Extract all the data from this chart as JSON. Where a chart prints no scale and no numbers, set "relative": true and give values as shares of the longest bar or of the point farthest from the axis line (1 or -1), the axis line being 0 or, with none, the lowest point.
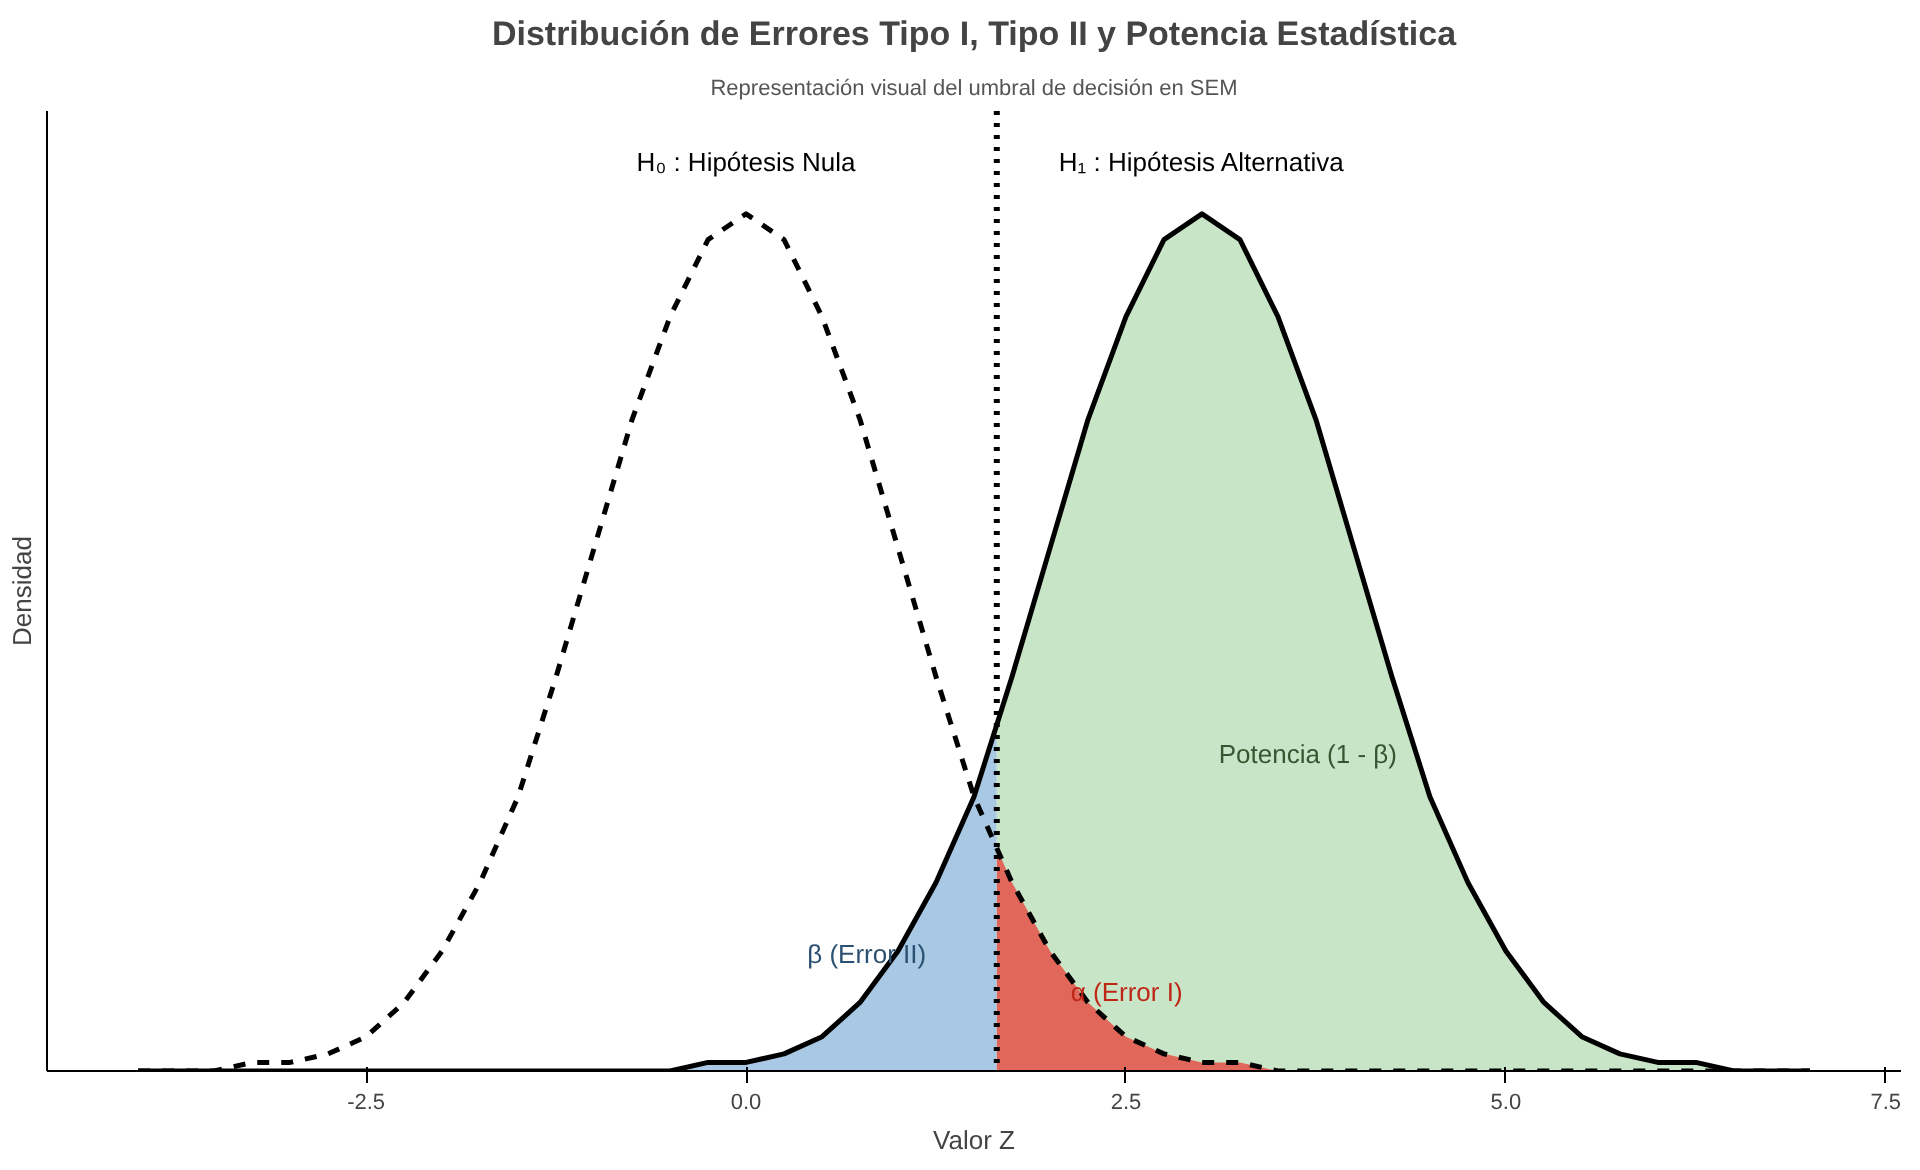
{
  "chart_data": {
    "type": "line",
    "title": "Distribución de Errores Tipo I, Tipo II y Potencia Estadística",
    "subtitle": "Representación visual del umbral de decisión en SEM",
    "xlabel": "Valor Z",
    "ylabel": "Densidad",
    "relative": true,
    "xlim": [
      -4.6,
      7.6
    ],
    "xticks": [
      -2.5,
      {
        "value": 0,
        "label": "0.0"
      },
      2.5,
      {
        "value": 5,
        "label": "5.0"
      },
      7.5
    ],
    "tick_labels": "x",
    "grid": false,
    "legend": false,
    "marker": "none",
    "series": [
      {
        "type": "area",
        "name": "β (Error II)",
        "color": "#a9c8e3",
        "x": [
          -4,
          -3.75,
          -3.5,
          -3.25,
          -3,
          -2.75,
          -2.5,
          -2.25,
          -2,
          -1.75,
          -1.5,
          -1.25,
          -1,
          -0.75,
          -0.5,
          -0.25,
          0,
          0.25,
          0.5,
          0.75,
          1,
          1.25,
          1.5,
          1.65
        ],
        "values": [
          0,
          0,
          0,
          0,
          0,
          0,
          0,
          0,
          0,
          0,
          0,
          0,
          0,
          0,
          0,
          0.01,
          0.01,
          0.02,
          0.04,
          0.08,
          0.14,
          0.22,
          0.32,
          0.4
        ]
      },
      {
        "type": "area",
        "name": "Potencia (1 - β)",
        "color": "#c9e5c7",
        "x": [
          1.65,
          1.75,
          2,
          2.25,
          2.5,
          2.75,
          3,
          3.25,
          3.5,
          3.75,
          4,
          4.25,
          4.5,
          4.75,
          5,
          5.25,
          5.5,
          5.75,
          6,
          6.25,
          6.5,
          6.75,
          7
        ],
        "values": [
          0.4,
          0.46,
          0.61,
          0.76,
          0.88,
          0.97,
          1,
          0.97,
          0.88,
          0.76,
          0.61,
          0.46,
          0.32,
          0.22,
          0.14,
          0.08,
          0.04,
          0.02,
          0.01,
          0.01,
          0,
          0,
          0
        ]
      },
      {
        "type": "area",
        "name": "α (Error I)",
        "color": "#e0675a",
        "x": [
          1.65,
          1.75,
          2,
          2.25,
          2.5,
          2.75,
          3,
          3.25,
          3.5,
          3.75,
          4,
          4.25,
          4.5,
          4.75,
          5,
          5.25,
          5.5,
          5.75,
          6,
          6.25,
          6.5,
          6.75,
          7
        ],
        "values": [
          0.26,
          0.22,
          0.14,
          0.08,
          0.04,
          0.02,
          0.01,
          0.01,
          0,
          0,
          0,
          0,
          0,
          0,
          0,
          0,
          0,
          0,
          0,
          0,
          0,
          0,
          0
        ]
      },
      {
        "name": "H₀ : Hipótesis Nula",
        "color": "#000000",
        "line_style": "dashed",
        "x": [
          -4,
          -3.75,
          -3.5,
          -3.25,
          -3,
          -2.75,
          -2.5,
          -2.25,
          -2,
          -1.75,
          -1.5,
          -1.25,
          -1,
          -0.75,
          -0.5,
          -0.25,
          0,
          0.25,
          0.5,
          0.75,
          1,
          1.25,
          1.5,
          1.75,
          2,
          2.25,
          2.5,
          2.75,
          3,
          3.25,
          3.5,
          3.75,
          4,
          4.25,
          4.5,
          4.75,
          5,
          5.25,
          5.5,
          5.75,
          6,
          6.25,
          6.5,
          6.75,
          7
        ],
        "values": [
          0,
          0,
          0,
          0.01,
          0.01,
          0.02,
          0.04,
          0.08,
          0.14,
          0.22,
          0.32,
          0.46,
          0.61,
          0.76,
          0.88,
          0.97,
          1,
          0.97,
          0.88,
          0.76,
          0.61,
          0.46,
          0.32,
          0.22,
          0.14,
          0.08,
          0.04,
          0.02,
          0.01,
          0.01,
          0,
          0,
          0,
          0,
          0,
          0,
          0,
          0,
          0,
          0,
          0,
          0,
          0,
          0,
          0
        ]
      },
      {
        "name": "H₁ : Hipótesis Alternativa",
        "color": "#000000",
        "line_style": "solid",
        "x": [
          -4,
          -3.75,
          -3.5,
          -3.25,
          -3,
          -2.75,
          -2.5,
          -2.25,
          -2,
          -1.75,
          -1.5,
          -1.25,
          -1,
          -0.75,
          -0.5,
          -0.25,
          0,
          0.25,
          0.5,
          0.75,
          1,
          1.25,
          1.5,
          1.75,
          2,
          2.25,
          2.5,
          2.75,
          3,
          3.25,
          3.5,
          3.75,
          4,
          4.25,
          4.5,
          4.75,
          5,
          5.25,
          5.5,
          5.75,
          6,
          6.25,
          6.5,
          6.75,
          7
        ],
        "values": [
          0,
          0,
          0,
          0,
          0,
          0,
          0,
          0,
          0,
          0,
          0,
          0,
          0,
          0,
          0,
          0.01,
          0.01,
          0.02,
          0.04,
          0.08,
          0.14,
          0.22,
          0.32,
          0.46,
          0.61,
          0.76,
          0.88,
          0.97,
          1,
          0.97,
          0.88,
          0.76,
          0.61,
          0.46,
          0.32,
          0.22,
          0.14,
          0.08,
          0.04,
          0.02,
          0.01,
          0.01,
          0,
          0,
          0
        ]
      }
    ],
    "ref_lines": [
      {
        "axis": "x",
        "value": 1.65,
        "color": "#000000",
        "line_style": "dotted"
      }
    ]
  }
}
